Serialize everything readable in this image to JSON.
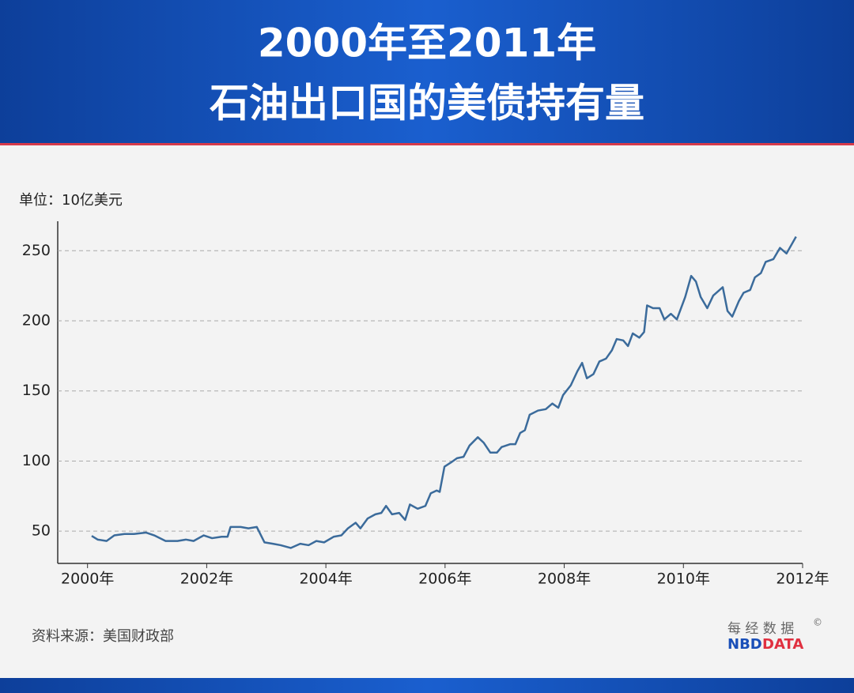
{
  "chart_data": {
    "type": "line",
    "title": "2000年至2011年",
    "subtitle": "石油出口国的美债持有量",
    "y_label": "单位：10亿美元",
    "source": "资料来源：美国财政部",
    "xlim": [
      1999.5,
      2012
    ],
    "ylim": [
      27,
      271
    ],
    "xticks": [
      {
        "value": 2000,
        "label": "2000年"
      },
      {
        "value": 2002,
        "label": "2002年"
      },
      {
        "value": 2004,
        "label": "2004年"
      },
      {
        "value": 2006,
        "label": "2006年"
      },
      {
        "value": 2008,
        "label": "2008年"
      },
      {
        "value": 2010,
        "label": "2010年"
      },
      {
        "value": 2012,
        "label": "2012年"
      }
    ],
    "yticks": [
      50,
      100,
      150,
      200,
      250
    ],
    "grid": true,
    "series": [
      {
        "color": "#3b6b9b",
        "x": [
          2000.07,
          2000.17,
          2000.32,
          2000.45,
          2000.62,
          2000.78,
          2000.98,
          2001.12,
          2001.31,
          2001.51,
          2001.65,
          2001.78,
          2001.95,
          2002.09,
          2002.25,
          2002.35,
          2002.4,
          2002.57,
          2002.7,
          2002.84,
          2002.97,
          2003.11,
          2003.24,
          2003.41,
          2003.57,
          2003.71,
          2003.84,
          2003.97,
          2004.13,
          2004.26,
          2004.37,
          2004.5,
          2004.58,
          2004.7,
          2004.83,
          2004.93,
          2005.01,
          2005.11,
          2005.23,
          2005.33,
          2005.41,
          2005.54,
          2005.67,
          2005.76,
          2005.86,
          2005.91,
          2005.99,
          2006.1,
          2006.2,
          2006.31,
          2006.41,
          2006.55,
          2006.65,
          2006.76,
          2006.87,
          2006.95,
          2007.09,
          2007.18,
          2007.26,
          2007.34,
          2007.42,
          2007.56,
          2007.69,
          2007.8,
          2007.9,
          2007.98,
          2008.11,
          2008.22,
          2008.3,
          2008.38,
          2008.49,
          2008.59,
          2008.7,
          2008.8,
          2008.88,
          2008.99,
          2009.07,
          2009.15,
          2009.26,
          2009.34,
          2009.39,
          2009.49,
          2009.6,
          2009.68,
          2009.79,
          2009.89,
          2010.03,
          2010.13,
          2010.21,
          2010.29,
          2010.4,
          2010.5,
          2010.66,
          2010.74,
          2010.82,
          2010.93,
          2011.01,
          2011.12,
          2011.2,
          2011.3,
          2011.38,
          2011.51,
          2011.62,
          2011.73,
          2011.89
        ],
        "values": [
          46.6,
          44,
          43,
          47,
          48,
          48,
          49,
          47,
          43,
          43,
          44,
          43,
          47,
          45,
          46,
          46,
          53,
          53,
          52,
          53,
          42,
          41,
          40,
          38,
          41,
          40,
          43,
          42,
          46,
          47,
          52,
          56,
          52,
          59,
          62,
          63,
          68,
          62,
          63,
          58,
          69,
          66,
          68,
          77,
          79,
          78,
          96,
          99,
          102,
          103,
          111,
          117,
          113,
          106,
          106,
          110,
          112,
          112,
          120,
          122,
          133,
          136,
          137,
          141,
          138,
          147,
          154,
          164,
          170,
          159,
          162,
          171,
          173,
          179,
          187,
          186,
          182,
          191,
          188,
          192,
          211,
          209,
          209,
          201,
          205,
          201,
          217,
          232,
          228,
          217,
          209,
          218,
          224,
          207,
          203,
          214,
          220,
          222,
          231,
          234,
          242,
          244,
          252,
          248,
          260
        ]
      }
    ]
  },
  "logo": {
    "cn": "每 经 数 据",
    "mark": "©",
    "nbd": "NBD",
    "data": "DATA"
  }
}
